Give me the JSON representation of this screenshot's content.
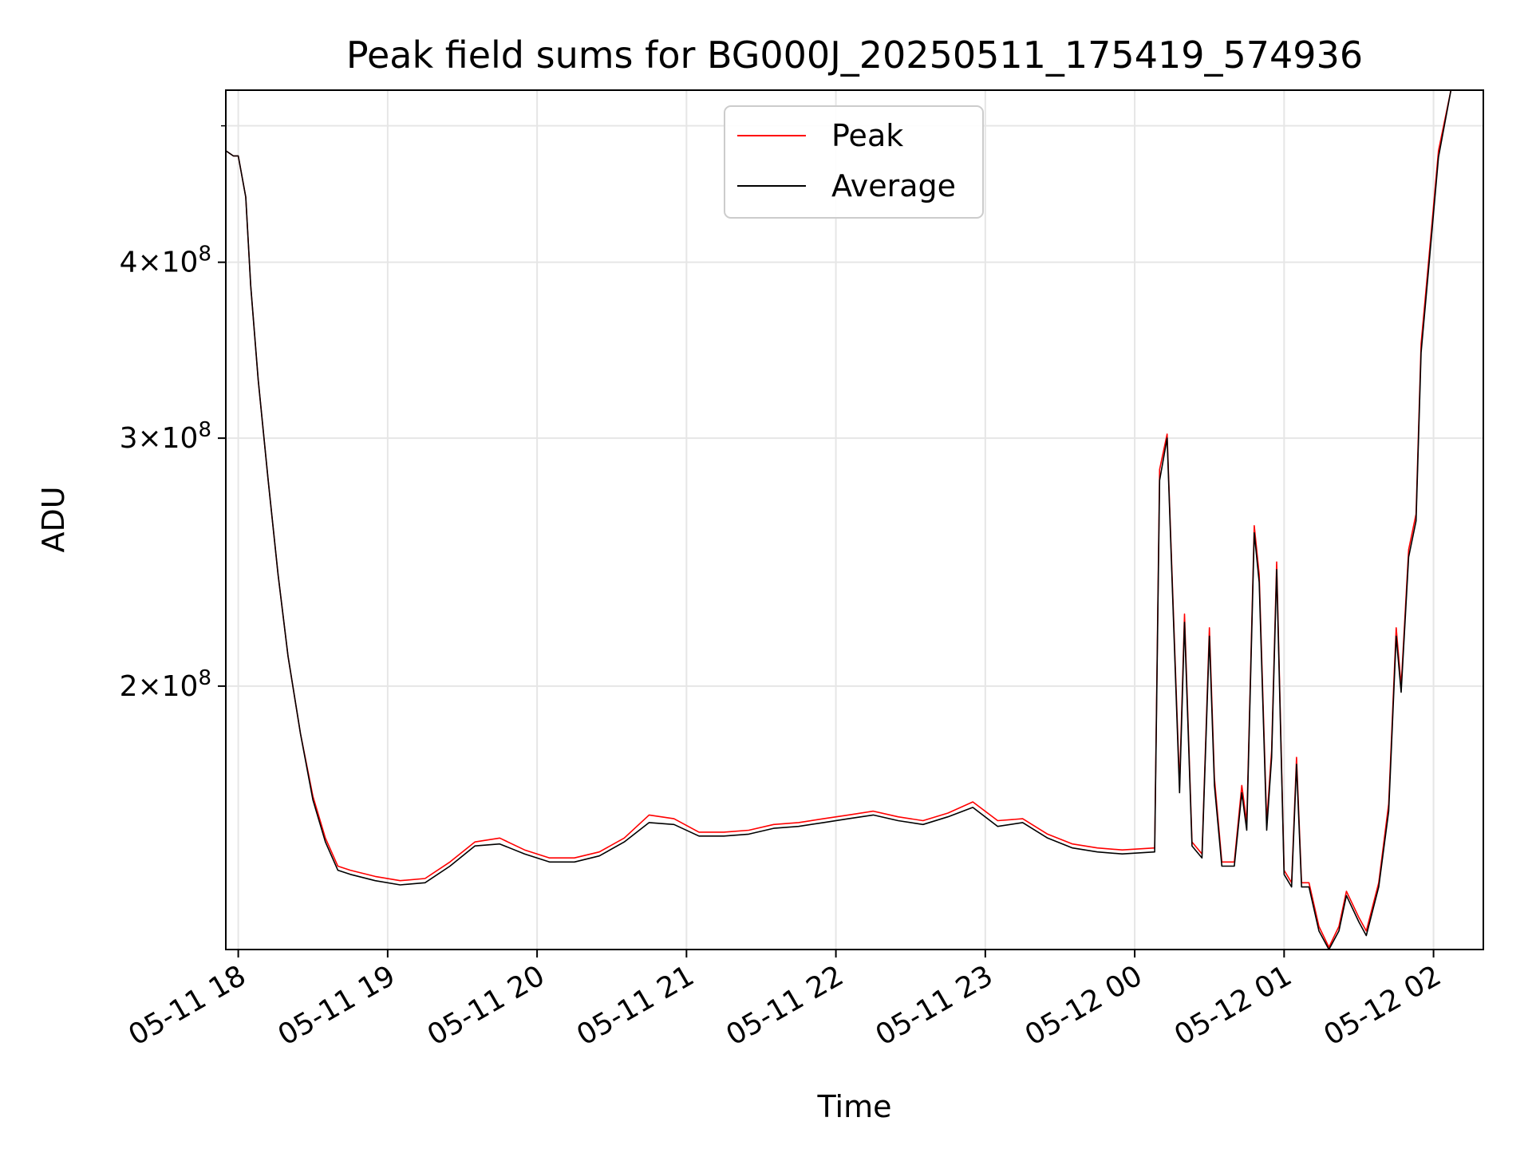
{
  "chart_data": {
    "type": "line",
    "title": "Peak field sums for BG000J_20250511_175419_574936",
    "xlabel": "Time",
    "ylabel": "ADU",
    "yscale": "log",
    "grid": true,
    "legend_position": "top-center",
    "xlim": [
      "2025-05-11 17:55",
      "2025-05-12 02:20"
    ],
    "ylim": [
      130000000,
      530000000
    ],
    "x_ticks": [
      {
        "value": "2025-05-11 18:00",
        "label": "05-11 18"
      },
      {
        "value": "2025-05-11 19:00",
        "label": "05-11 19"
      },
      {
        "value": "2025-05-11 20:00",
        "label": "05-11 20"
      },
      {
        "value": "2025-05-11 21:00",
        "label": "05-11 21"
      },
      {
        "value": "2025-05-11 22:00",
        "label": "05-11 22"
      },
      {
        "value": "2025-05-11 23:00",
        "label": "05-11 23"
      },
      {
        "value": "2025-05-12 00:00",
        "label": "05-12 00"
      },
      {
        "value": "2025-05-12 01:00",
        "label": "05-12 01"
      },
      {
        "value": "2025-05-12 02:00",
        "label": "05-12 02"
      }
    ],
    "y_ticks": [
      {
        "value": 200000000,
        "base": "2",
        "exp": "8"
      },
      {
        "value": 300000000,
        "base": "3",
        "exp": "8"
      },
      {
        "value": 400000000,
        "base": "4",
        "exp": "8"
      }
    ],
    "series": [
      {
        "name": "Peak",
        "color": "#ff0000",
        "points": [
          [
            "2025-05-11 17:55",
            480000000.0
          ],
          [
            "2025-05-11 17:58",
            476000000.0
          ],
          [
            "2025-05-11 18:00",
            476000000.0
          ],
          [
            "2025-05-11 18:03",
            445000000.0
          ],
          [
            "2025-05-11 18:05",
            385000000.0
          ],
          [
            "2025-05-11 18:08",
            330000000.0
          ],
          [
            "2025-05-11 18:12",
            280000000.0
          ],
          [
            "2025-05-11 18:16",
            240000000.0
          ],
          [
            "2025-05-11 18:20",
            210000000.0
          ],
          [
            "2025-05-11 18:25",
            185000000.0
          ],
          [
            "2025-05-11 18:30",
            167000000.0
          ],
          [
            "2025-05-11 18:35",
            156000000.0
          ],
          [
            "2025-05-11 18:40",
            149000000.0
          ],
          [
            "2025-05-11 18:45",
            148000000.0
          ],
          [
            "2025-05-11 18:55",
            146500000.0
          ],
          [
            "2025-05-11 19:05",
            145500000.0
          ],
          [
            "2025-05-11 19:15",
            146000000.0
          ],
          [
            "2025-05-11 19:25",
            150000000.0
          ],
          [
            "2025-05-11 19:35",
            155000000.0
          ],
          [
            "2025-05-11 19:45",
            156000000.0
          ],
          [
            "2025-05-11 19:55",
            153000000.0
          ],
          [
            "2025-05-11 20:05",
            151000000.0
          ],
          [
            "2025-05-11 20:15",
            151000000.0
          ],
          [
            "2025-05-11 20:25",
            152500000.0
          ],
          [
            "2025-05-11 20:35",
            156000000.0
          ],
          [
            "2025-05-11 20:45",
            162000000.0
          ],
          [
            "2025-05-11 20:55",
            161000000.0
          ],
          [
            "2025-05-11 21:05",
            157500000.0
          ],
          [
            "2025-05-11 21:15",
            157500000.0
          ],
          [
            "2025-05-11 21:25",
            158000000.0
          ],
          [
            "2025-05-11 21:35",
            159500000.0
          ],
          [
            "2025-05-11 21:45",
            160000000.0
          ],
          [
            "2025-05-11 21:55",
            161000000.0
          ],
          [
            "2025-05-11 22:05",
            162000000.0
          ],
          [
            "2025-05-11 22:15",
            163000000.0
          ],
          [
            "2025-05-11 22:25",
            161500000.0
          ],
          [
            "2025-05-11 22:35",
            160500000.0
          ],
          [
            "2025-05-11 22:45",
            162500000.0
          ],
          [
            "2025-05-11 22:55",
            165500000.0
          ],
          [
            "2025-05-11 23:05",
            160500000.0
          ],
          [
            "2025-05-11 23:15",
            161000000.0
          ],
          [
            "2025-05-11 23:25",
            157000000.0
          ],
          [
            "2025-05-11 23:35",
            154500000.0
          ],
          [
            "2025-05-11 23:45",
            153500000.0
          ],
          [
            "2025-05-11 23:55",
            153000000.0
          ],
          [
            "2025-05-12 00:08",
            153500000.0
          ],
          [
            "2025-05-12 00:10",
            285000000.0
          ],
          [
            "2025-05-12 00:13",
            302000000.0
          ],
          [
            "2025-05-12 00:15",
            240000000.0
          ],
          [
            "2025-05-12 00:18",
            170000000.0
          ],
          [
            "2025-05-12 00:20",
            225000000.0
          ],
          [
            "2025-05-12 00:23",
            155000000.0
          ],
          [
            "2025-05-12 00:27",
            152000000.0
          ],
          [
            "2025-05-12 00:30",
            220000000.0
          ],
          [
            "2025-05-12 00:32",
            172000000.0
          ],
          [
            "2025-05-12 00:35",
            150000000.0
          ],
          [
            "2025-05-12 00:40",
            150000000.0
          ],
          [
            "2025-05-12 00:43",
            170000000.0
          ],
          [
            "2025-05-12 00:45",
            160000000.0
          ],
          [
            "2025-05-12 00:48",
            260000000.0
          ],
          [
            "2025-05-12 00:50",
            240000000.0
          ],
          [
            "2025-05-12 00:53",
            160000000.0
          ],
          [
            "2025-05-12 00:55",
            180000000.0
          ],
          [
            "2025-05-12 00:57",
            245000000.0
          ],
          [
            "2025-05-12 01:00",
            148000000.0
          ],
          [
            "2025-05-12 01:03",
            145000000.0
          ],
          [
            "2025-05-12 01:05",
            178000000.0
          ],
          [
            "2025-05-12 01:07",
            145000000.0
          ],
          [
            "2025-05-12 01:10",
            145000000.0
          ],
          [
            "2025-05-12 01:14",
            135000000.0
          ],
          [
            "2025-05-12 01:18",
            130500000.0
          ],
          [
            "2025-05-12 01:22",
            135000000.0
          ],
          [
            "2025-05-12 01:25",
            143000000.0
          ],
          [
            "2025-05-12 01:30",
            137000000.0
          ],
          [
            "2025-05-12 01:33",
            134000000.0
          ],
          [
            "2025-05-12 01:38",
            145000000.0
          ],
          [
            "2025-05-12 01:42",
            165000000.0
          ],
          [
            "2025-05-12 01:45",
            220000000.0
          ],
          [
            "2025-05-12 01:47",
            200000000.0
          ],
          [
            "2025-05-12 01:50",
            250000000.0
          ],
          [
            "2025-05-12 01:53",
            265000000.0
          ],
          [
            "2025-05-12 01:55",
            350000000.0
          ],
          [
            "2025-05-12 01:58",
            400000000.0
          ],
          [
            "2025-05-12 02:02",
            480000000.0
          ],
          [
            "2025-05-12 02:07",
            530000000.0
          ]
        ]
      },
      {
        "name": "Average",
        "color": "#000000",
        "points": [
          [
            "2025-05-11 17:55",
            480000000.0
          ],
          [
            "2025-05-11 17:58",
            476000000.0
          ],
          [
            "2025-05-11 18:00",
            476000000.0
          ],
          [
            "2025-05-11 18:03",
            445000000.0
          ],
          [
            "2025-05-11 18:05",
            385000000.0
          ],
          [
            "2025-05-11 18:08",
            330000000.0
          ],
          [
            "2025-05-11 18:12",
            280000000.0
          ],
          [
            "2025-05-11 18:16",
            240000000.0
          ],
          [
            "2025-05-11 18:20",
            210000000.0
          ],
          [
            "2025-05-11 18:25",
            185000000.0
          ],
          [
            "2025-05-11 18:30",
            166000000.0
          ],
          [
            "2025-05-11 18:35",
            155000000.0
          ],
          [
            "2025-05-11 18:40",
            148000000.0
          ],
          [
            "2025-05-11 18:45",
            147000000.0
          ],
          [
            "2025-05-11 18:55",
            145500000.0
          ],
          [
            "2025-05-11 19:05",
            144500000.0
          ],
          [
            "2025-05-11 19:15",
            145000000.0
          ],
          [
            "2025-05-11 19:25",
            149000000.0
          ],
          [
            "2025-05-11 19:35",
            154000000.0
          ],
          [
            "2025-05-11 19:45",
            154500000.0
          ],
          [
            "2025-05-11 19:55",
            152000000.0
          ],
          [
            "2025-05-11 20:05",
            150000000.0
          ],
          [
            "2025-05-11 20:15",
            150000000.0
          ],
          [
            "2025-05-11 20:25",
            151500000.0
          ],
          [
            "2025-05-11 20:35",
            155000000.0
          ],
          [
            "2025-05-11 20:45",
            160000000.0
          ],
          [
            "2025-05-11 20:55",
            159500000.0
          ],
          [
            "2025-05-11 21:05",
            156500000.0
          ],
          [
            "2025-05-11 21:15",
            156500000.0
          ],
          [
            "2025-05-11 21:25",
            157000000.0
          ],
          [
            "2025-05-11 21:35",
            158500000.0
          ],
          [
            "2025-05-11 21:45",
            159000000.0
          ],
          [
            "2025-05-11 21:55",
            160000000.0
          ],
          [
            "2025-05-11 22:05",
            161000000.0
          ],
          [
            "2025-05-11 22:15",
            162000000.0
          ],
          [
            "2025-05-11 22:25",
            160500000.0
          ],
          [
            "2025-05-11 22:35",
            159500000.0
          ],
          [
            "2025-05-11 22:45",
            161500000.0
          ],
          [
            "2025-05-11 22:55",
            164000000.0
          ],
          [
            "2025-05-11 23:05",
            159000000.0
          ],
          [
            "2025-05-11 23:15",
            160000000.0
          ],
          [
            "2025-05-11 23:25",
            156000000.0
          ],
          [
            "2025-05-11 23:35",
            153500000.0
          ],
          [
            "2025-05-11 23:45",
            152500000.0
          ],
          [
            "2025-05-11 23:55",
            152000000.0
          ],
          [
            "2025-05-12 00:08",
            152500000.0
          ],
          [
            "2025-05-12 00:10",
            280000000.0
          ],
          [
            "2025-05-12 00:13",
            300000000.0
          ],
          [
            "2025-05-12 00:15",
            238000000.0
          ],
          [
            "2025-05-12 00:18",
            168000000.0
          ],
          [
            "2025-05-12 00:20",
            222000000.0
          ],
          [
            "2025-05-12 00:23",
            154000000.0
          ],
          [
            "2025-05-12 00:27",
            151000000.0
          ],
          [
            "2025-05-12 00:30",
            217000000.0
          ],
          [
            "2025-05-12 00:32",
            170000000.0
          ],
          [
            "2025-05-12 00:35",
            149000000.0
          ],
          [
            "2025-05-12 00:40",
            149000000.0
          ],
          [
            "2025-05-12 00:43",
            168000000.0
          ],
          [
            "2025-05-12 00:45",
            158000000.0
          ],
          [
            "2025-05-12 00:48",
            257000000.0
          ],
          [
            "2025-05-12 00:50",
            237000000.0
          ],
          [
            "2025-05-12 00:53",
            158000000.0
          ],
          [
            "2025-05-12 00:55",
            178000000.0
          ],
          [
            "2025-05-12 00:57",
            242000000.0
          ],
          [
            "2025-05-12 01:00",
            147000000.0
          ],
          [
            "2025-05-12 01:03",
            144000000.0
          ],
          [
            "2025-05-12 01:05",
            176000000.0
          ],
          [
            "2025-05-12 01:07",
            144000000.0
          ],
          [
            "2025-05-12 01:10",
            144000000.0
          ],
          [
            "2025-05-12 01:14",
            134000000.0
          ],
          [
            "2025-05-12 01:18",
            130000000.0
          ],
          [
            "2025-05-12 01:22",
            134000000.0
          ],
          [
            "2025-05-12 01:25",
            142000000.0
          ],
          [
            "2025-05-12 01:30",
            136000000.0
          ],
          [
            "2025-05-12 01:33",
            133000000.0
          ],
          [
            "2025-05-12 01:38",
            144000000.0
          ],
          [
            "2025-05-12 01:42",
            163000000.0
          ],
          [
            "2025-05-12 01:45",
            217000000.0
          ],
          [
            "2025-05-12 01:47",
            198000000.0
          ],
          [
            "2025-05-12 01:50",
            247000000.0
          ],
          [
            "2025-05-12 01:53",
            262000000.0
          ],
          [
            "2025-05-12 01:55",
            345000000.0
          ],
          [
            "2025-05-12 01:58",
            395000000.0
          ],
          [
            "2025-05-12 02:02",
            475000000.0
          ],
          [
            "2025-05-12 02:07",
            530000000.0
          ]
        ]
      }
    ]
  }
}
